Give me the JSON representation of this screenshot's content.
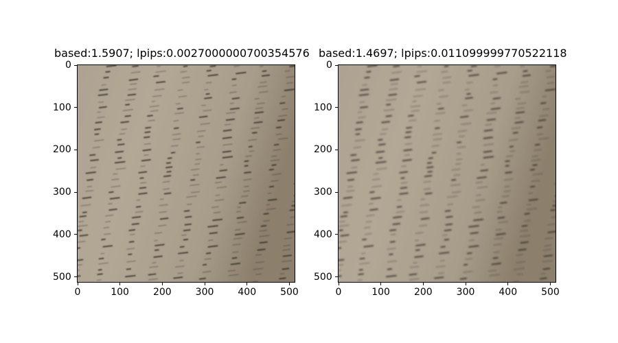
{
  "panels": [
    {
      "title": "based:1.5907; lpips:0.0027000000700354576",
      "x_ticks": [
        "0",
        "100",
        "200",
        "300",
        "400",
        "500"
      ],
      "y_ticks": [
        "0",
        "100",
        "200",
        "300",
        "400",
        "500"
      ],
      "image_description_icon": "blurred-handwritten-page-image"
    },
    {
      "title": "based:1.4697; lpips:0.011099999770522118",
      "x_ticks": [
        "0",
        "100",
        "200",
        "300",
        "400",
        "500"
      ],
      "y_ticks": [
        "0",
        "100",
        "200",
        "300",
        "400",
        "500"
      ],
      "image_description_icon": "blurred-handwritten-page-image"
    }
  ],
  "colors": {
    "paper": "#b3a796",
    "paper_dark": "#8c806d",
    "ink": "#2e2a24"
  }
}
